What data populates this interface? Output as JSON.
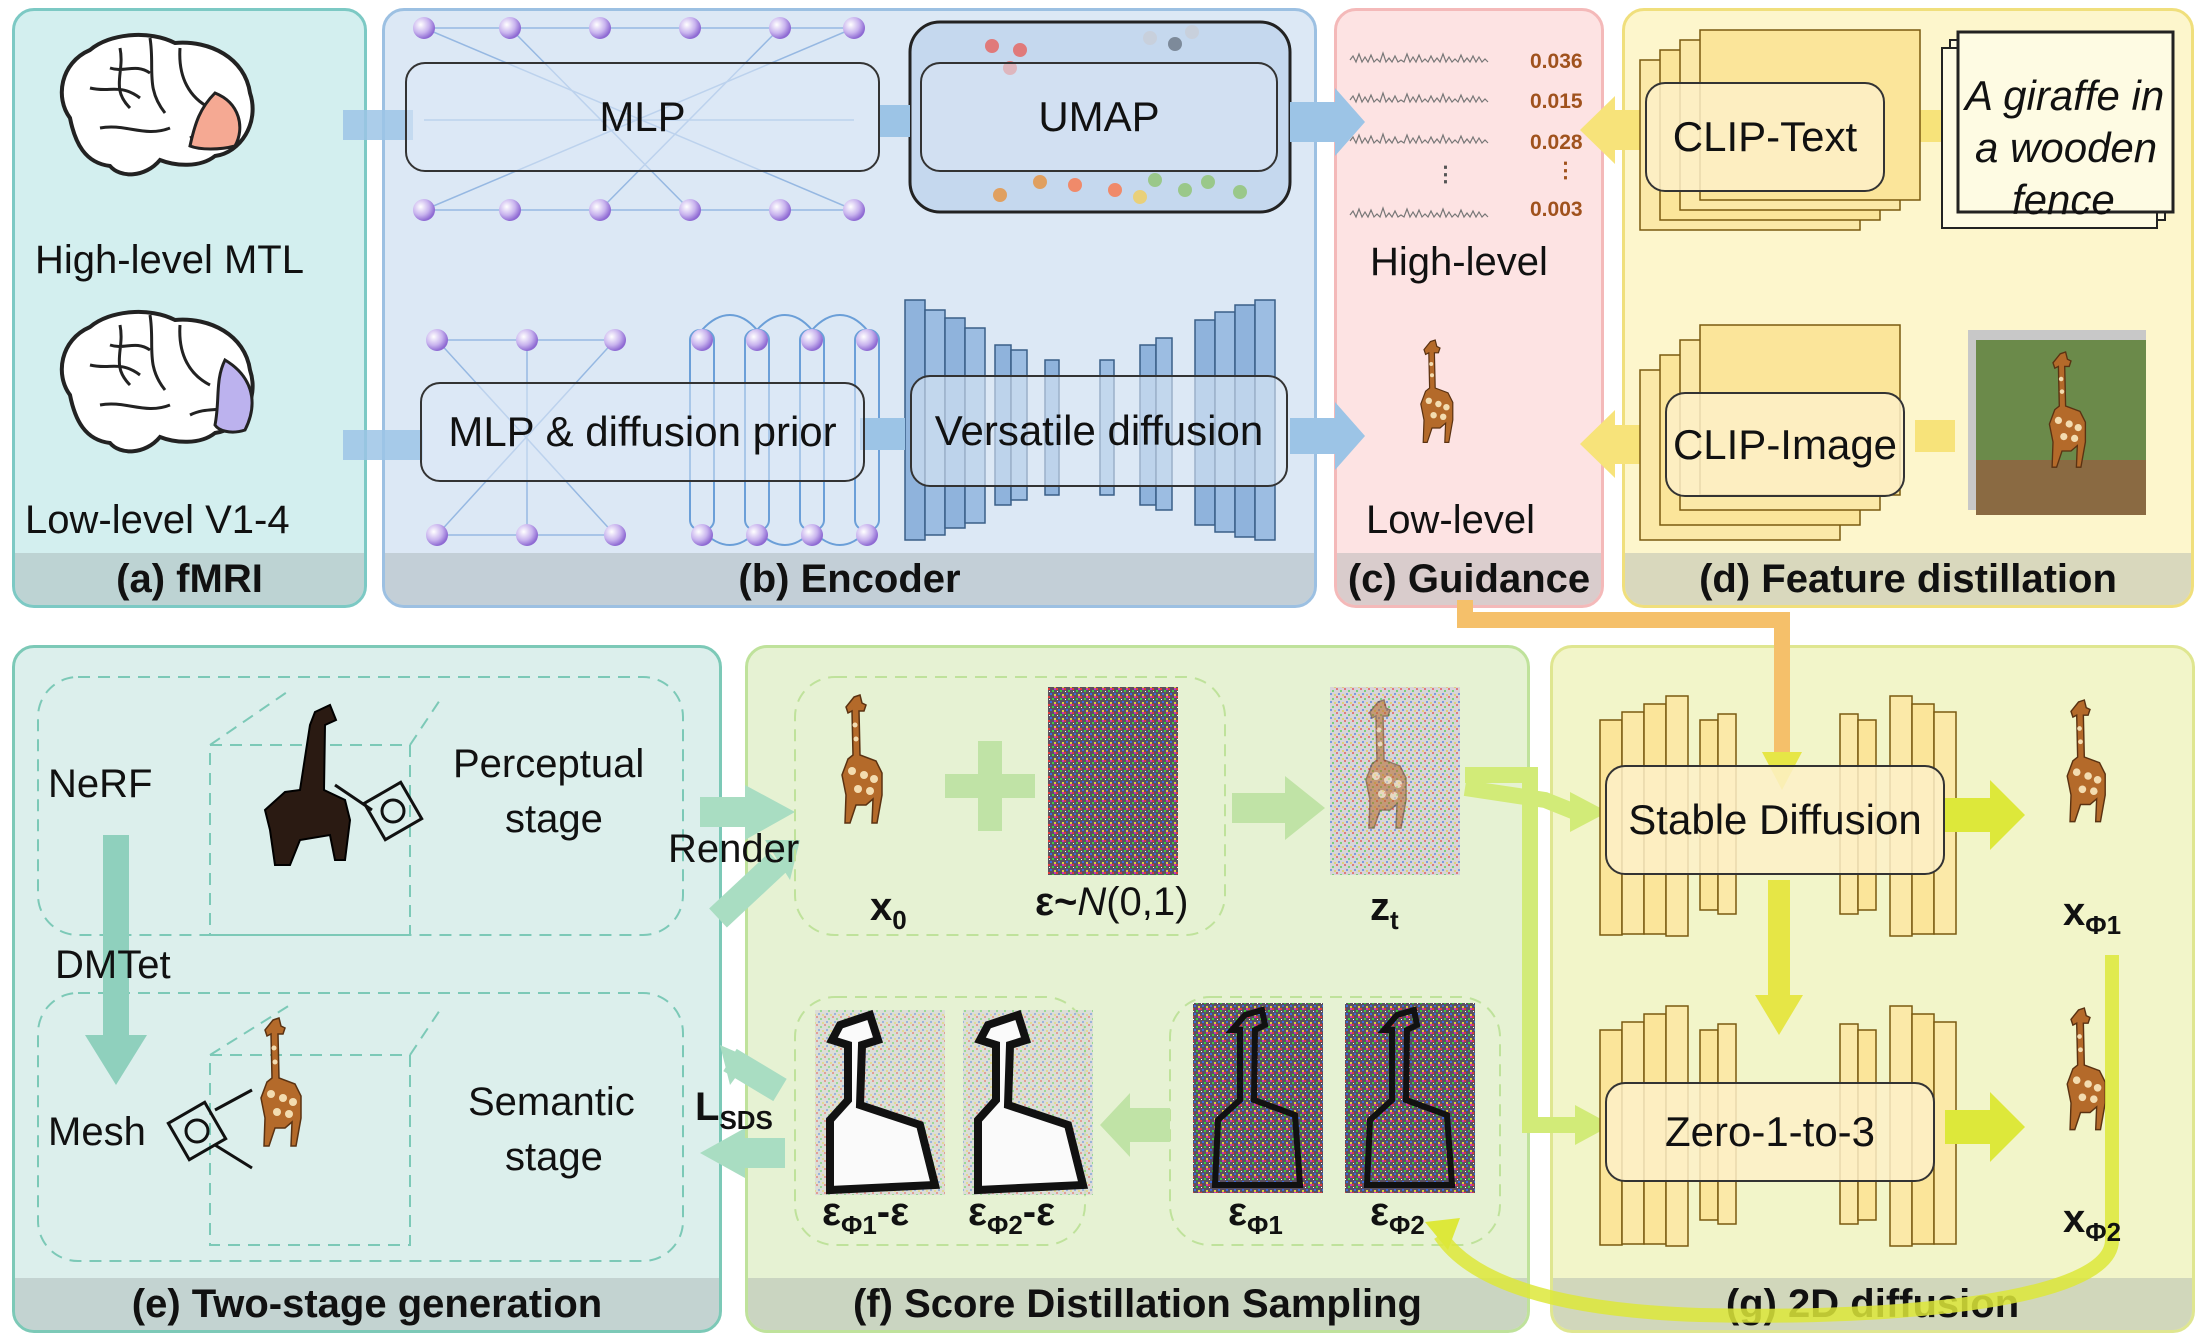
{
  "panels": {
    "fmri": {
      "label": "(a) fMRI",
      "high": "High-level MTL",
      "low": "Low-level V1-4"
    },
    "encoder": {
      "label": "(b) Encoder",
      "mlp": "MLP",
      "umap": "UMAP",
      "mlp_prior": "MLP  & diffusion prior",
      "versatile": "Versatile diffusion"
    },
    "guidance": {
      "label": "(c) Guidance",
      "high": "High-level",
      "low": "Low-level",
      "scores": [
        "0.036",
        "0.015",
        "0.028",
        "0.003"
      ],
      "dots": "⋮"
    },
    "distill": {
      "label": "(d) Feature distillation",
      "clip_text": "CLIP-Text",
      "clip_image": "CLIP-Image",
      "caption_line1": "A giraffe in",
      "caption_line2": "a wooden",
      "caption_line3": "fence"
    },
    "two_stage": {
      "label": "(e) Two-stage generation",
      "nerf": "NeRF",
      "dmtet": "DMTet",
      "mesh": "Mesh",
      "perceptual_1": "Perceptual",
      "perceptual_2": "stage",
      "semantic_1": "Semantic",
      "semantic_2": "stage",
      "render": "Render",
      "lsds": "L",
      "lsds_sub": "SDS"
    },
    "sds": {
      "label": "(f) Score Distillation Sampling",
      "x0": "x",
      "x0_sub": "0",
      "eps": "ε~",
      "eps_n": "N",
      "eps_rest": "(0,1)",
      "zt": "z",
      "zt_sub": "t",
      "diff1": "ε",
      "diff1_sub": "Φ1",
      "diff1_rest": "-ε",
      "diff2": "ε",
      "diff2_sub": "Φ2",
      "diff2_rest": "-ε",
      "e1": "ε",
      "e1_sub": "Φ1",
      "e2": "ε",
      "e2_sub": "Φ2"
    },
    "diffusion2d": {
      "label": "(g) 2D diffusion",
      "stable": "Stable Diffusion",
      "zero123": "Zero-1-to-3",
      "xphi1": "x",
      "xphi1_sub": "Φ1",
      "xphi2": "x",
      "xphi2_sub": "Φ2"
    }
  },
  "colors": {
    "fmri_bg": "#d3efef",
    "encoder_bg": "#dce8f5",
    "guidance_bg": "#fde3e3",
    "distill_bg": "#fdf6cc",
    "two_stage_bg": "#dcefec",
    "sds_bg": "#e6f2d3",
    "diff2d_bg": "#f2f5c9",
    "arrow_blue": "#9cc4e6",
    "arrow_yellow": "#f7e37a",
    "arrow_green": "#a9d99a",
    "arrow_lime": "#d6ec3a"
  }
}
